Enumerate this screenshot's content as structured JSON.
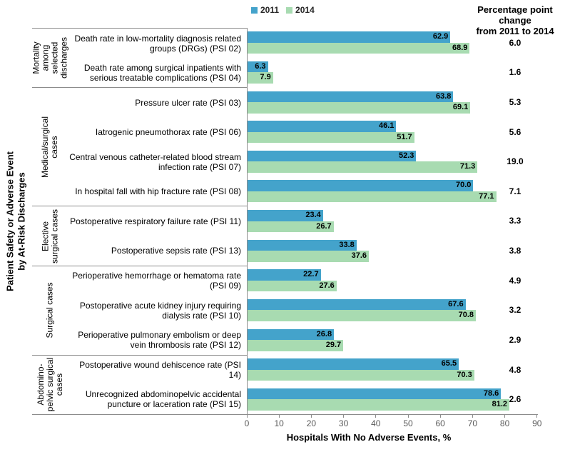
{
  "legend": {
    "items": [
      {
        "label": "2011",
        "color": "#44A3CB"
      },
      {
        "label": "2014",
        "color": "#A8DBB1"
      }
    ]
  },
  "change_column": {
    "header_lines": [
      "Percentage point",
      "change",
      "from 2011 to 2014"
    ]
  },
  "y_axis": {
    "title_lines": [
      "Patient Safety or Adverse Event",
      "by At-Risk Discharges"
    ]
  },
  "x_axis": {
    "title": "Hospitals With No Adverse Events, %",
    "ticks": [
      0,
      10,
      20,
      30,
      40,
      50,
      60,
      70,
      80,
      90
    ],
    "range": [
      0,
      90
    ]
  },
  "chart_data": {
    "type": "bar",
    "orientation": "horizontal",
    "title": "",
    "xlabel": "Hospitals With No Adverse Events, %",
    "ylabel": "Patient Safety or Adverse Event by At-Risk Discharges",
    "x_range": [
      0,
      90
    ],
    "grid": false,
    "legend_position": "top",
    "series": [
      "2011",
      "2014"
    ],
    "colors": {
      "2011": "#44A3CB",
      "2014": "#A8DBB1"
    },
    "groups": [
      {
        "label": "Mortality among selected discharges",
        "items": [
          {
            "label": "Death rate in low-mortality diagnosis related groups (DRGs) (PSI 02)",
            "v2011": "62.9",
            "v2014": "68.9",
            "change": "6.0"
          },
          {
            "label": "Death rate among surgical inpatients with serious treatable complications (PSI 04)",
            "v2011": "6.3",
            "v2014": "7.9",
            "change": "1.6"
          }
        ]
      },
      {
        "label": "Medical/surgical cases",
        "items": [
          {
            "label": "Pressure ulcer rate (PSI 03)",
            "v2011": "63.8",
            "v2014": "69.1",
            "change": "5.3"
          },
          {
            "label": "Iatrogenic pneumothorax rate (PSI 06)",
            "v2011": "46.1",
            "v2014": "51.7",
            "change": "5.6"
          },
          {
            "label": "Central venous catheter-related blood stream infection rate (PSI 07)",
            "v2011": "52.3",
            "v2014": "71.3",
            "change": "19.0"
          },
          {
            "label": "In hospital fall with hip fracture rate (PSI 08)",
            "v2011": "70.0",
            "v2014": "77.1",
            "change": "7.1"
          }
        ]
      },
      {
        "label": "Elective surgical cases",
        "items": [
          {
            "label": "Postoperative respiratory failure rate (PSI 11)",
            "v2011": "23.4",
            "v2014": "26.7",
            "change": "3.3"
          },
          {
            "label": "Postoperative sepsis rate (PSI 13)",
            "v2011": "33.8",
            "v2014": "37.6",
            "change": "3.8"
          }
        ]
      },
      {
        "label": "Surgical cases",
        "items": [
          {
            "label": "Perioperative hemorrhage or hematoma rate (PSI 09)",
            "v2011": "22.7",
            "v2014": "27.6",
            "change": "4.9"
          },
          {
            "label": "Postoperative acute kidney injury requiring dialysis rate (PSI 10)",
            "v2011": "67.6",
            "v2014": "70.8",
            "change": "3.2"
          },
          {
            "label": "Perioperative pulmonary embolism or deep vein thrombosis rate (PSI 12)",
            "v2011": "26.8",
            "v2014": "29.7",
            "change": "2.9"
          }
        ]
      },
      {
        "label": "Abdomino-pelvic surgical cases",
        "items": [
          {
            "label": "Postoperative wound dehiscence rate (PSI 14)",
            "v2011": "65.5",
            "v2014": "70.3",
            "change": "4.8"
          },
          {
            "label": "Unrecognized abdominopelvic accidental puncture or laceration rate (PSI 15)",
            "v2011": "78.6",
            "v2014": "81.2",
            "change": "2.6"
          }
        ]
      }
    ]
  }
}
